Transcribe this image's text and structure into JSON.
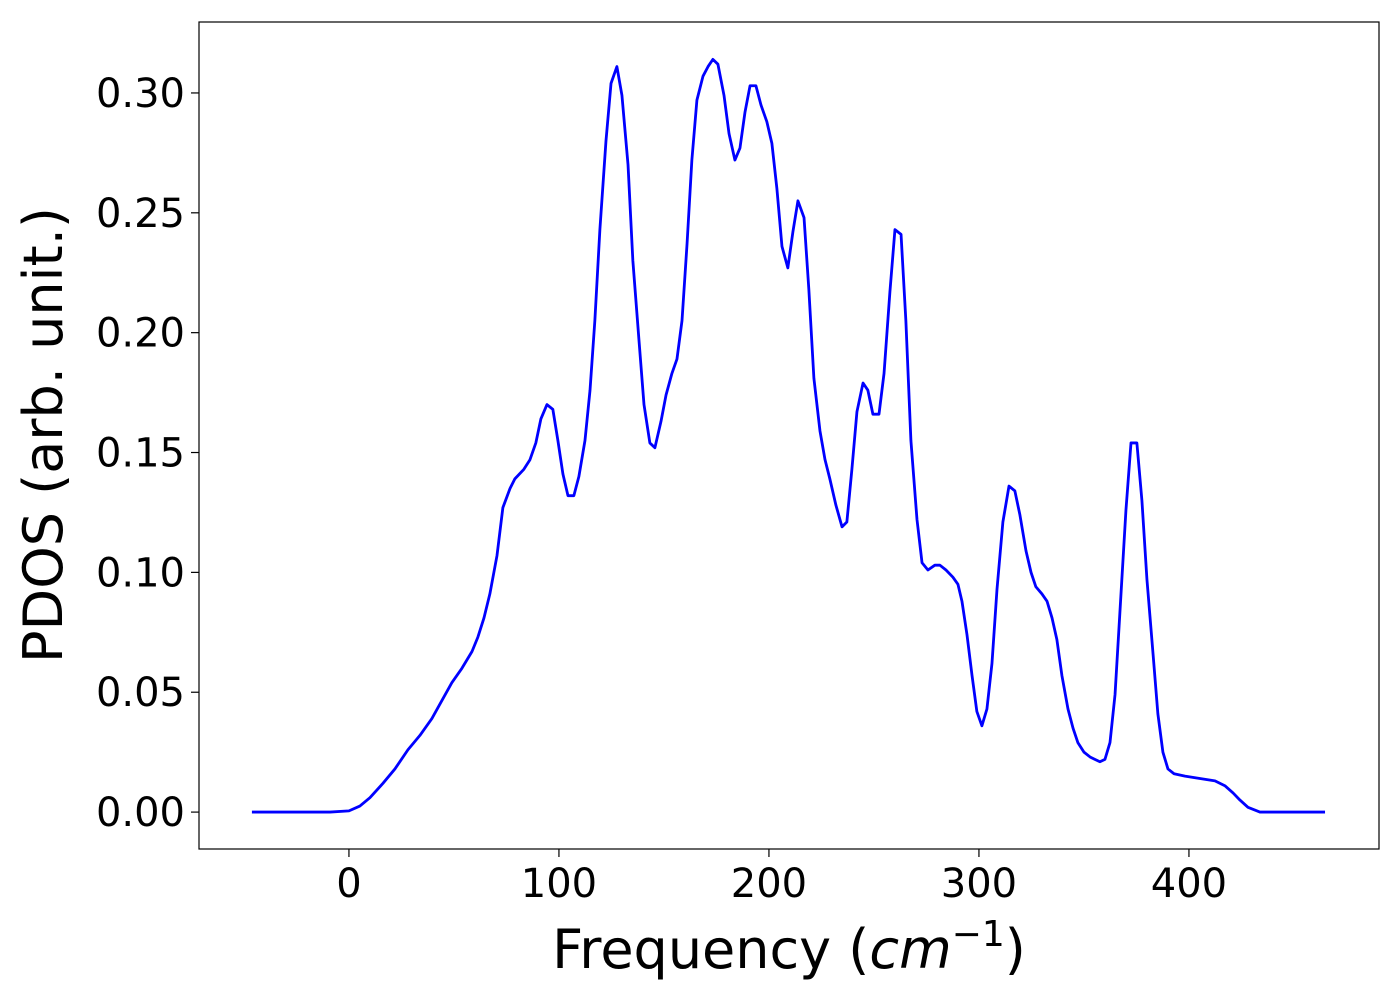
{
  "chart_data": {
    "type": "line",
    "xlabel": [
      "Frequency (",
      "cm",
      "−1",
      ")"
    ],
    "ylabel": "PDOS (arb. unit.)",
    "xlim": [
      -71.4,
      490.5
    ],
    "ylim": [
      -0.0154,
      0.3296
    ],
    "xticks": [
      0,
      100,
      200,
      300,
      400
    ],
    "yticks": [
      {
        "value": 0,
        "label": "0.00"
      },
      {
        "value": 0.05,
        "label": "0.05"
      },
      {
        "value": 0.1,
        "label": "0.10"
      },
      {
        "value": 0.15,
        "label": "0.15"
      },
      {
        "value": 0.2,
        "label": "0.20"
      },
      {
        "value": 0.25,
        "label": "0.25"
      },
      {
        "value": 0.3,
        "label": "0.30"
      }
    ],
    "grid": false,
    "x": [
      -46.2,
      -9,
      0,
      5.2,
      10,
      16.2,
      21.9,
      28.1,
      33.8,
      39.5,
      43.3,
      49,
      53.8,
      58.6,
      61.4,
      64.3,
      67.1,
      70.5,
      73.3,
      76.7,
      79,
      83.3,
      86.2,
      89,
      91.4,
      94.3,
      97.1,
      99.5,
      101.9,
      104.3,
      107.1,
      109.5,
      112.4,
      114.8,
      117.1,
      119.5,
      122.4,
      124.8,
      127.6,
      130,
      132.9,
      135.2,
      138.1,
      140.5,
      143.3,
      145.7,
      148.6,
      151,
      153.8,
      156.2,
      158.6,
      161,
      163.3,
      165.7,
      168.6,
      171,
      173.3,
      175.7,
      178.6,
      181,
      183.8,
      186.2,
      188.6,
      191,
      193.8,
      196.2,
      199,
      201.4,
      203.8,
      206.2,
      209,
      211.4,
      213.8,
      216.7,
      219,
      221.4,
      224.3,
      226.7,
      229,
      231.9,
      234.8,
      237.1,
      239.5,
      241.9,
      244.8,
      247.1,
      249.5,
      252.4,
      254.8,
      257.6,
      260,
      262.9,
      265.2,
      267.6,
      270.5,
      272.9,
      275.7,
      279,
      281.4,
      284.3,
      287.6,
      290,
      291.9,
      294.3,
      296.7,
      299,
      301.4,
      303.8,
      306.2,
      308.6,
      311.4,
      314.3,
      317.1,
      319.5,
      322.4,
      324.8,
      327.1,
      330,
      332.4,
      334.8,
      337.1,
      339.5,
      342.4,
      344.8,
      347.1,
      350,
      352.9,
      355.2,
      357.6,
      360,
      362.4,
      364.8,
      367.1,
      370,
      372.4,
      375.2,
      377.6,
      380,
      382.9,
      385.2,
      387.6,
      390,
      392.9,
      398.1,
      405.2,
      412.4,
      417.1,
      421,
      424.3,
      428.1,
      433.8,
      464.8
    ],
    "series": [
      {
        "color": "#0000ff",
        "values": [
          0,
          0,
          0.0005,
          0.0025,
          0.006,
          0.012,
          0.018,
          0.026,
          0.032,
          0.039,
          0.045,
          0.054,
          0.06,
          0.067,
          0.073,
          0.081,
          0.091,
          0.107,
          0.127,
          0.135,
          0.139,
          0.143,
          0.147,
          0.154,
          0.164,
          0.17,
          0.168,
          0.155,
          0.141,
          0.132,
          0.132,
          0.14,
          0.155,
          0.176,
          0.205,
          0.243,
          0.28,
          0.304,
          0.311,
          0.299,
          0.27,
          0.23,
          0.197,
          0.17,
          0.154,
          0.152,
          0.163,
          0.174,
          0.183,
          0.189,
          0.205,
          0.237,
          0.272,
          0.297,
          0.307,
          0.311,
          0.314,
          0.312,
          0.299,
          0.283,
          0.272,
          0.277,
          0.292,
          0.303,
          0.303,
          0.295,
          0.288,
          0.279,
          0.26,
          0.236,
          0.227,
          0.242,
          0.255,
          0.248,
          0.218,
          0.181,
          0.159,
          0.147,
          0.139,
          0.128,
          0.119,
          0.121,
          0.143,
          0.167,
          0.179,
          0.176,
          0.166,
          0.166,
          0.183,
          0.217,
          0.243,
          0.241,
          0.205,
          0.155,
          0.122,
          0.104,
          0.101,
          0.103,
          0.103,
          0.101,
          0.098,
          0.095,
          0.088,
          0.074,
          0.057,
          0.042,
          0.036,
          0.043,
          0.062,
          0.093,
          0.121,
          0.136,
          0.134,
          0.124,
          0.109,
          0.1,
          0.094,
          0.091,
          0.088,
          0.081,
          0.072,
          0.057,
          0.043,
          0.035,
          0.029,
          0.025,
          0.023,
          0.022,
          0.021,
          0.022,
          0.029,
          0.049,
          0.083,
          0.126,
          0.154,
          0.154,
          0.13,
          0.097,
          0.066,
          0.041,
          0.025,
          0.018,
          0.016,
          0.015,
          0.014,
          0.013,
          0.011,
          0.008,
          0.005,
          0.002,
          0,
          0
        ]
      }
    ]
  }
}
